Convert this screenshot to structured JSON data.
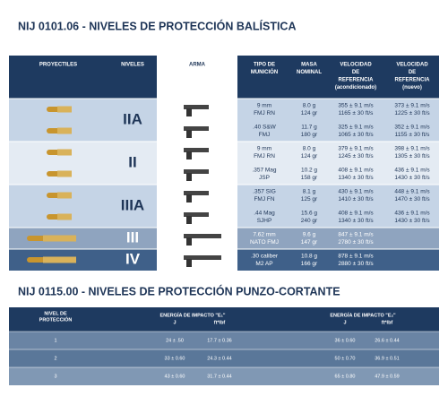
{
  "ballistic": {
    "title": "NIJ 0101.06 - NIVELES DE PROTECCIÓN BALÍSTICA",
    "headers": [
      [
        "PROYECTILES"
      ],
      [
        "NIVELES"
      ],
      [
        "ARMA"
      ],
      [
        "TIPO DE",
        "MUNICIÓN"
      ],
      [
        "MASA",
        "NOMINAL"
      ],
      [
        "VELOCIDAD",
        "DE",
        "REFERENCIA",
        "(acondicionado)"
      ],
      [
        "VELOCIDAD",
        "DE",
        "REFERENCIA",
        "(nuevo)"
      ]
    ],
    "levels": [
      {
        "level": "IIA",
        "rows": [
          {
            "ammo": [
              "9 mm",
              "FMJ RN"
            ],
            "mass": [
              "8.0 g",
              "124 gr"
            ],
            "v_cond": [
              "355 ± 9.1 m/s",
              "1165 ± 30 ft/s"
            ],
            "v_new": [
              "373 ± 9.1 m/s",
              "1225 ± 30 ft/s"
            ]
          },
          {
            "ammo": [
              ".40 S&W",
              "FMJ"
            ],
            "mass": [
              "11.7 g",
              "180 gr"
            ],
            "v_cond": [
              "325 ± 9.1 m/s",
              "1065 ± 30 ft/s"
            ],
            "v_new": [
              "352 ± 9.1 m/s",
              "1155 ± 30 ft/s"
            ]
          }
        ]
      },
      {
        "level": "II",
        "rows": [
          {
            "ammo": [
              "9 mm",
              "FMJ RN"
            ],
            "mass": [
              "8.0 g",
              "124 gr"
            ],
            "v_cond": [
              "379 ± 9.1 m/s",
              "1245 ± 30 ft/s"
            ],
            "v_new": [
              "398 ± 9.1 m/s",
              "1305 ± 30 ft/s"
            ]
          },
          {
            "ammo": [
              ".357 Mag",
              "JSP"
            ],
            "mass": [
              "10.2 g",
              "158 gr"
            ],
            "v_cond": [
              "408 ± 9.1 m/s",
              "1340 ± 30 ft/s"
            ],
            "v_new": [
              "436 ± 9.1 m/s",
              "1430 ± 30 ft/s"
            ]
          }
        ]
      },
      {
        "level": "IIIA",
        "rows": [
          {
            "ammo": [
              ".357 SIG",
              "FMJ FN"
            ],
            "mass": [
              "8.1 g",
              "125 gr"
            ],
            "v_cond": [
              "430 ± 9.1 m/s",
              "1410 ± 30 ft/s"
            ],
            "v_new": [
              "448 ± 9.1 m/s",
              "1470 ± 30 ft/s"
            ]
          },
          {
            "ammo": [
              ".44 Mag",
              "SJHP"
            ],
            "mass": [
              "15.6 g",
              "240 gr"
            ],
            "v_cond": [
              "408 ± 9.1 m/s",
              "1340 ± 30 ft/s"
            ],
            "v_new": [
              "436 ± 9.1 m/s",
              "1430 ± 30 ft/s"
            ]
          }
        ]
      },
      {
        "level": "III",
        "rows": [
          {
            "ammo": [
              "7.62 mm",
              "NATO FMJ"
            ],
            "mass": [
              "9.6 g",
              "147 gr"
            ],
            "v_cond": [
              "847 ± 9.1 m/s",
              "2780 ± 30 ft/s"
            ]
          }
        ]
      },
      {
        "level": "IV",
        "rows": [
          {
            "ammo": [
              ".30 caliber",
              "M2 AP"
            ],
            "mass": [
              "10.8 g",
              "166 gr"
            ],
            "v_cond": [
              "878 ± 9.1 m/s",
              "2880 ± 30 ft/s"
            ]
          }
        ]
      }
    ]
  },
  "stab": {
    "title": "NIJ 0115.00 - NIVELES DE PROTECCIÓN PUNZO-CORTANTE",
    "headers": {
      "level": [
        "NIVEL DE",
        "PROTECCIÓN"
      ],
      "e1": "ENERGÍA DE IMPACTO \"E₁\"",
      "e2": "ENERGÍA DE IMPACTO \"E₂\"",
      "units": [
        "J",
        "ft*lbf",
        "J",
        "ft*lbf"
      ]
    },
    "rows": [
      [
        "1",
        "24 ± .50",
        "17.7 ± 0.36",
        "36 ± 0.60",
        "26.6 ± 0.44"
      ],
      [
        "2",
        "33 ± 0.60",
        "24.3 ± 0.44",
        "50 ± 0.70",
        "36.9 ± 0.51"
      ],
      [
        "3",
        "43 ± 0.60",
        "31.7 ± 0.44",
        "65 ± 0.80",
        "47.9 ± 0.59"
      ]
    ]
  }
}
